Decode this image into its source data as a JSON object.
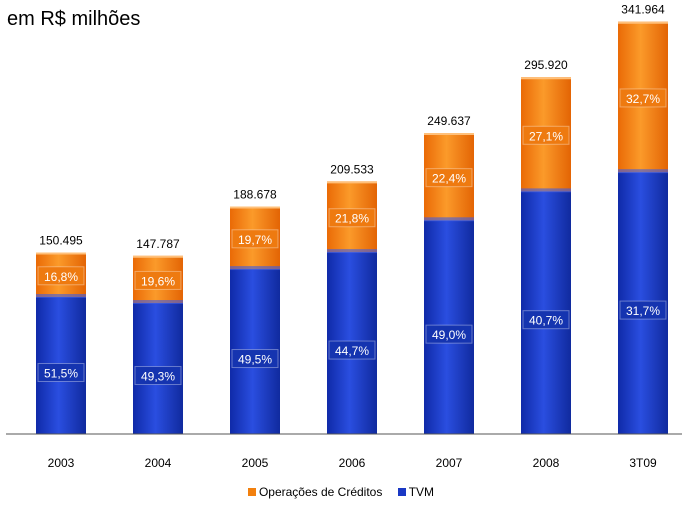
{
  "title": "em R$ milhões",
  "chart_data": {
    "type": "bar",
    "stacked": true,
    "categories": [
      "2003",
      "2004",
      "2005",
      "2006",
      "2007",
      "2008",
      "3T09"
    ],
    "totals": [
      "150.495",
      "147.787",
      "188.678",
      "209.533",
      "249.637",
      "295.920",
      "341.964"
    ],
    "total_values": [
      150495,
      147787,
      188678,
      209533,
      249637,
      295920,
      341964
    ],
    "series": [
      {
        "name": "TVM",
        "color": "#1a38c4",
        "share_labels": [
          "51,5%",
          "49,3%",
          "49,5%",
          "44,7%",
          "49,0%",
          "40,7%",
          "31,7%"
        ]
      },
      {
        "name": "Operações de Créditos",
        "color": "#f2800e",
        "share_labels": [
          "16,8%",
          "19,6%",
          "19,7%",
          "21,8%",
          "22,4%",
          "27,1%",
          "32,7%"
        ]
      }
    ],
    "tvm_segment_fraction_of_bar": [
      0.755,
      0.735,
      0.725,
      0.72,
      0.71,
      0.68,
      0.635
    ],
    "legend": [
      "Operações de Créditos",
      "TVM"
    ],
    "legend_position": "bottom",
    "ylim": [
      0,
      350000
    ],
    "grid": false
  }
}
